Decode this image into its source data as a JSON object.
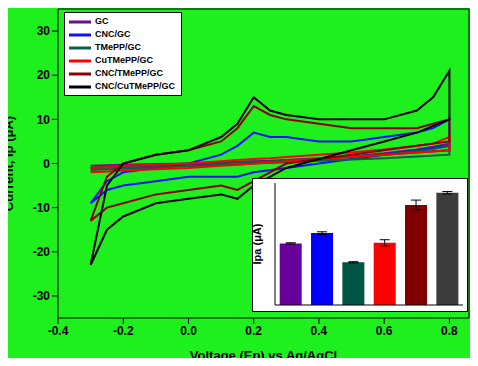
{
  "chart_data": [
    {
      "type": "line",
      "x_label": "Voltage (Ep) vs Ag/AgCl",
      "y_label": "Current, Ip (μA)",
      "x": [
        -0.3,
        -0.25,
        -0.2,
        -0.1,
        0,
        0.1,
        0.15,
        0.2,
        0.25,
        0.3,
        0.4,
        0.5,
        0.6,
        0.7,
        0.75,
        0.8,
        0.8,
        0.7,
        0.6,
        0.5,
        0.4,
        0.3,
        0.2,
        0.15,
        0.1,
        0,
        -0.1,
        -0.2,
        -0.25,
        -0.3
      ],
      "series": [
        {
          "name": "GC",
          "color": "#6a0d8f",
          "values": [
            -0.5,
            -0.4,
            -0.3,
            -0.1,
            0,
            0.3,
            0.4,
            0.5,
            0.6,
            0.8,
            1,
            1.6,
            2.3,
            3.2,
            3.8,
            4.5,
            3,
            2.5,
            2,
            1.6,
            1.2,
            0.8,
            0.4,
            0.2,
            0,
            -0.3,
            -0.6,
            -0.8,
            -0.9,
            -1
          ]
        },
        {
          "name": "CNC/GC",
          "color": "#1010ff",
          "values": [
            -9,
            -4,
            -2,
            -1,
            0,
            2,
            4,
            7,
            6,
            6,
            5,
            5,
            6,
            7,
            8,
            10,
            4,
            3,
            2,
            1,
            0,
            -1,
            -2,
            -3,
            -3,
            -3,
            -4,
            -5,
            -6,
            -9
          ]
        },
        {
          "name": "TMePP/GC",
          "color": "#0d5c4a",
          "values": [
            -1,
            -0.8,
            -0.6,
            -0.3,
            0,
            0.2,
            0.3,
            0.4,
            0.5,
            0.7,
            1,
            1.5,
            2,
            2.8,
            3.3,
            4,
            2,
            1.6,
            1.2,
            0.9,
            0.6,
            0.3,
            0,
            -0.2,
            -0.3,
            -0.6,
            -0.9,
            -1.2,
            -1.3,
            -1.5
          ]
        },
        {
          "name": "CuTMePP/GC",
          "color": "#ff0000",
          "values": [
            -1,
            -0.8,
            -0.5,
            -0.3,
            0,
            0.5,
            0.8,
            1,
            1.2,
            1.5,
            2,
            2.5,
            3.2,
            4,
            4.5,
            6,
            3,
            2.5,
            2,
            1.5,
            1,
            0.5,
            0,
            -0.3,
            -0.5,
            -1,
            -1.3,
            -1.6,
            -1.8,
            -2
          ]
        },
        {
          "name": "CNC/TMePP/GC",
          "color": "#8b0000",
          "values": [
            -13,
            -3,
            0,
            2,
            3,
            5,
            8,
            13,
            11,
            10,
            9,
            8,
            8,
            8,
            9,
            10,
            5,
            4,
            3,
            2,
            1,
            0,
            -4,
            -6,
            -5,
            -6,
            -7,
            -9,
            -10,
            -13
          ]
        },
        {
          "name": "CNC/CuTMePP/GC",
          "color": "#000000",
          "values": [
            -23,
            -5,
            0,
            2,
            3,
            6,
            9,
            15,
            12,
            11,
            10,
            10,
            10,
            12,
            15,
            21,
            10,
            7,
            5,
            3,
            1,
            -1,
            -5,
            -8,
            -7,
            -8,
            -9,
            -12,
            -15,
            -23
          ]
        }
      ],
      "xlim": [
        -0.4,
        0.86
      ],
      "xticks": [
        -0.4,
        -0.2,
        {
          "value": 0,
          "label": "0.0"
        },
        0.2,
        0.4,
        0.6,
        0.8
      ],
      "ylim": [
        -35,
        35
      ],
      "yticks": [
        -30,
        -20,
        -10,
        0,
        10,
        20,
        30
      ],
      "legend": "upper left",
      "grid": false
    },
    {
      "type": "bar",
      "y_label": "Ipa (μA)",
      "categories": [
        null,
        null,
        null,
        null,
        null,
        null
      ],
      "values": [
        10.1,
        11.8,
        7,
        10.2,
        16.4,
        18.4
      ],
      "errors": [
        0.1,
        0.2,
        0.1,
        0.5,
        0.8,
        0.2
      ],
      "colors": [
        "#660099",
        "#0000ff",
        "#005544",
        "#ff0000",
        "#800000",
        "#3c3c3c"
      ],
      "ylim": [
        0,
        20
      ],
      "tick_labels": false
    }
  ]
}
